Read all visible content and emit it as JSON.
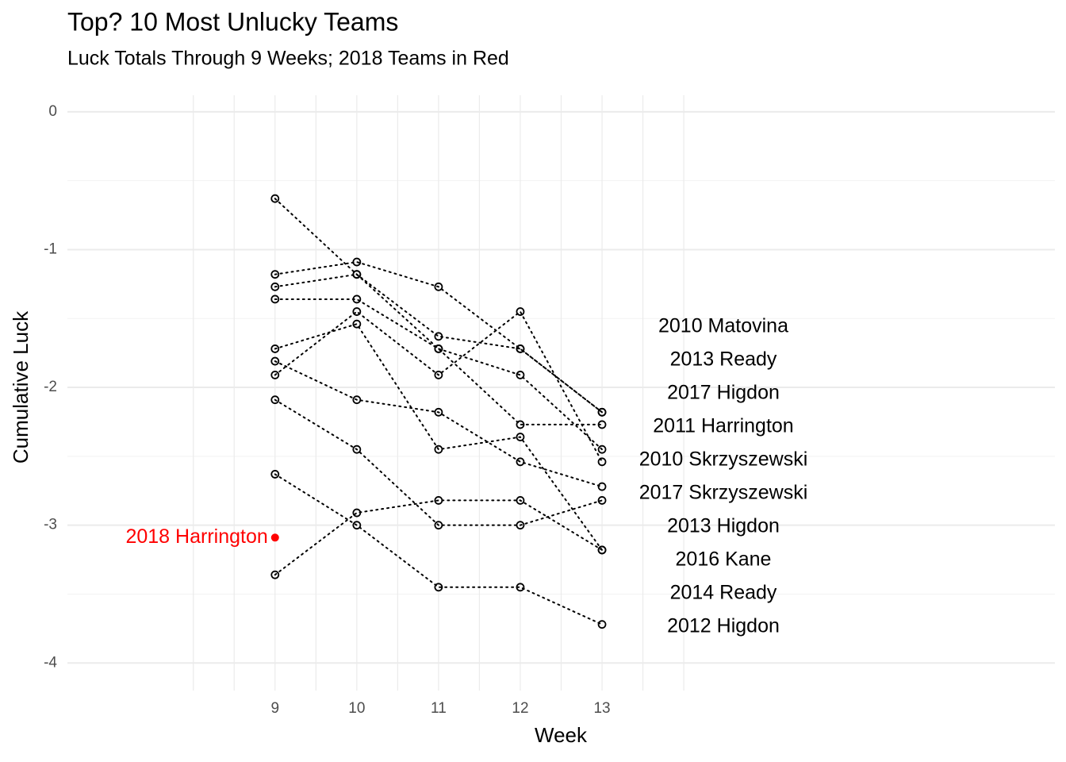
{
  "chart_data": {
    "type": "line",
    "title": "Top? 10 Most Unlucky Teams",
    "subtitle": "Luck Totals Through 9 Weeks; 2018 Teams in Red",
    "x_label": "Week",
    "y_label": "Cumulative Luck",
    "x": [
      9,
      10,
      11,
      12,
      13
    ],
    "xlim": [
      6.46,
      18.54
    ],
    "xticks": [
      9,
      10,
      11,
      12,
      13
    ],
    "x_grid": [
      8,
      8.5,
      9,
      9.5,
      10,
      10.5,
      11,
      11.5,
      12,
      12.5,
      13,
      13.5,
      14
    ],
    "ylim": [
      -4.2,
      0.12
    ],
    "yticks": [
      0,
      -1,
      -2,
      -3,
      -4
    ],
    "y_minor_grid": [
      -0.5,
      -1.5,
      -2.5,
      -3.5
    ],
    "grid": true,
    "line_style": "dotted",
    "series": [
      {
        "name": "2010 Matovina",
        "color": "#000000",
        "values": [
          -0.63,
          -1.18,
          -1.63,
          -1.72,
          -2.18
        ]
      },
      {
        "name": "2013 Ready",
        "color": "#000000",
        "values": [
          -1.18,
          -1.09,
          -1.27,
          -1.72,
          -2.18
        ]
      },
      {
        "name": "2017 Higdon",
        "color": "#000000",
        "values": [
          -1.27,
          -1.18,
          -1.72,
          -2.27,
          -2.27
        ]
      },
      {
        "name": "2011 Harrington",
        "color": "#000000",
        "values": [
          -1.36,
          -1.36,
          -1.72,
          -1.91,
          -2.45
        ]
      },
      {
        "name": "2010 Skrzyszewski",
        "color": "#000000",
        "values": [
          -1.91,
          -1.45,
          -1.91,
          -1.45,
          -2.54
        ]
      },
      {
        "name": "2017 Skrzyszewski",
        "color": "#000000",
        "values": [
          -1.81,
          -2.09,
          -2.18,
          -2.54,
          -2.72
        ]
      },
      {
        "name": "2013 Higdon",
        "color": "#000000",
        "values": [
          -2.09,
          -2.45,
          -3.0,
          -3.0,
          -2.82
        ]
      },
      {
        "name": "2016 Kane",
        "color": "#000000",
        "values": [
          -1.72,
          -1.54,
          -2.45,
          -2.36,
          -3.18
        ]
      },
      {
        "name": "2014 Ready",
        "color": "#000000",
        "values": [
          -3.36,
          -2.91,
          -2.82,
          -2.82,
          -3.18
        ]
      },
      {
        "name": "2012 Higdon",
        "color": "#000000",
        "values": [
          -2.63,
          -3.0,
          -3.45,
          -3.45,
          -3.72
        ]
      }
    ],
    "highlight": {
      "name": "2018 Harrington",
      "x": 9,
      "value": -3.09,
      "color": "#ff0000"
    }
  }
}
